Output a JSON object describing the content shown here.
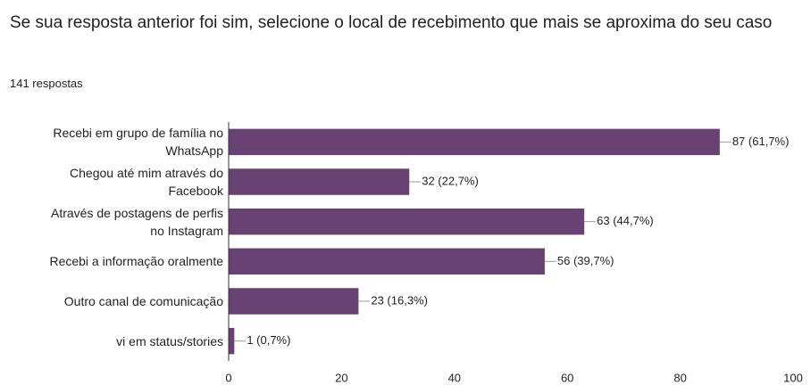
{
  "chart_data": {
    "type": "hbar",
    "title": "Se sua resposta anterior foi sim, selecione o local de recebimento que mais se aproxima do seu caso",
    "subtitle": "141 respostas",
    "categories": [
      "Recebi em grupo de família no\nWhatsApp",
      "Chegou até mim através do\nFacebook",
      "Através de postagens de perfis\nno Instagram",
      "Recebi a informação oralmente",
      "Outro canal de comunicação",
      "vi em status/stories"
    ],
    "values": [
      87,
      32,
      63,
      56,
      23,
      1
    ],
    "value_labels": [
      "87 (61,7%)",
      "32 (22,7%)",
      "63 (44,7%)",
      "56 (39,7%)",
      "23 (16,3%)",
      "1 (0,7%)"
    ],
    "color": "#674272",
    "xlim": [
      0,
      100
    ],
    "xticks": [
      0,
      20,
      40,
      60,
      80,
      100
    ],
    "grid": false
  }
}
